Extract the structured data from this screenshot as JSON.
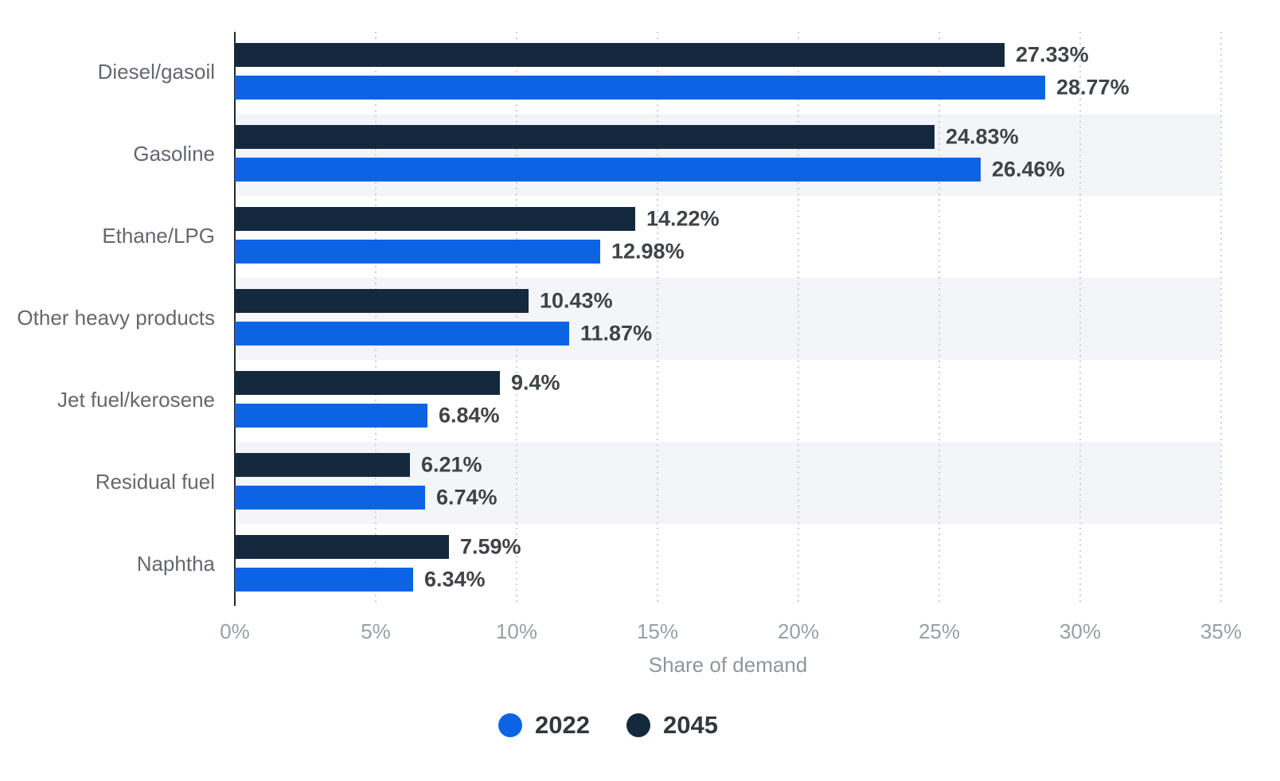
{
  "chart_data": {
    "type": "bar",
    "orientation": "horizontal",
    "title": "",
    "xlabel": "Share of demand",
    "ylabel": "",
    "categories": [
      "Diesel/gasoil",
      "Gasoline",
      "Ethane/LPG",
      "Other heavy products",
      "Jet fuel/kerosene",
      "Residual fuel",
      "Naphtha"
    ],
    "series": [
      {
        "name": "2022",
        "color": "#0c64e4",
        "values": [
          28.77,
          26.46,
          12.98,
          11.87,
          6.84,
          6.74,
          6.34
        ]
      },
      {
        "name": "2045",
        "color": "#15293e",
        "values": [
          27.33,
          24.83,
          14.22,
          10.43,
          9.4,
          6.21,
          7.59
        ]
      }
    ],
    "bar_order_top_to_bottom": [
      "2045",
      "2022"
    ],
    "value_labels": {
      "2022": [
        "28.77%",
        "26.46%",
        "12.98%",
        "11.87%",
        "6.84%",
        "6.74%",
        "6.34%"
      ],
      "2045": [
        "27.33%",
        "24.83%",
        "14.22%",
        "10.43%",
        "9.4%",
        "6.21%",
        "7.59%"
      ]
    },
    "xlim": [
      0,
      35
    ],
    "x_ticks": [
      "0%",
      "5%",
      "10%",
      "15%",
      "20%",
      "25%",
      "30%",
      "35%"
    ],
    "grid": "dotted-vertical",
    "row_stripes": "alternating",
    "legend_position": "bottom"
  },
  "legend": {
    "items": [
      {
        "label": "2022",
        "color": "#0c64e4"
      },
      {
        "label": "2045",
        "color": "#15293e"
      }
    ]
  },
  "colors": {
    "series_2022": "#0c64e4",
    "series_2045": "#15293e",
    "stripe": "#f4f5f8",
    "gridline": "#cbced4",
    "axis_line": "#23282f",
    "value_label": "#3f4348",
    "category_label": "#64676d",
    "tick_label": "#999ea6",
    "axis_title": "#8f949c",
    "legend_label": "#33363c"
  }
}
